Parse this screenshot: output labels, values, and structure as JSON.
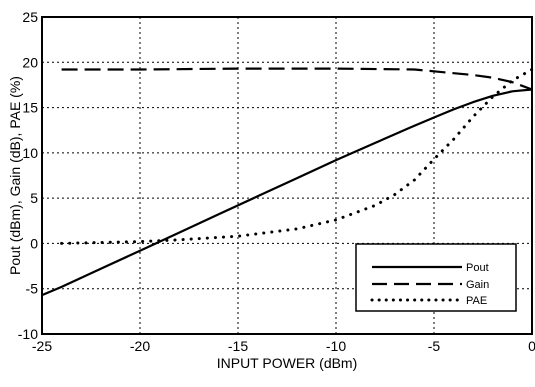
{
  "chart_data": {
    "type": "line",
    "xlabel": "INPUT POWER (dBm)",
    "ylabel": "Pout (dBm), Gain (dB), PAE (%)",
    "xlim": [
      -25,
      0
    ],
    "ylim": [
      -10,
      25
    ],
    "x_ticks": [
      -25,
      -20,
      -15,
      -10,
      -5,
      0
    ],
    "y_ticks": [
      -10,
      -5,
      0,
      5,
      10,
      15,
      20,
      25
    ],
    "x_tick_labels": [
      "-25",
      "-20",
      "-15",
      "-10",
      "-5",
      "0"
    ],
    "y_tick_labels": [
      "-10",
      "-5",
      "0",
      "5",
      "10",
      "15",
      "20",
      "25"
    ],
    "grid": true,
    "grid_style": "dotted",
    "legend_position": "bottom-right",
    "series": [
      {
        "name": "Pout",
        "style": "solid",
        "x": [
          -25,
          -24,
          -22,
          -20,
          -18,
          -16,
          -14,
          -12,
          -10,
          -8,
          -6,
          -5,
          -4,
          -3,
          -2,
          -1,
          0
        ],
        "y": [
          -5.7,
          -4.8,
          -2.8,
          -0.8,
          1.2,
          3.2,
          5.2,
          7.2,
          9.2,
          11.1,
          13.0,
          13.9,
          14.8,
          15.6,
          16.3,
          16.8,
          17.0
        ]
      },
      {
        "name": "Gain",
        "style": "dashed",
        "x": [
          -24,
          -20,
          -15,
          -10,
          -6,
          -5,
          -4,
          -3,
          -2,
          -1,
          0
        ],
        "y": [
          19.2,
          19.2,
          19.3,
          19.3,
          19.2,
          19.0,
          18.8,
          18.6,
          18.3,
          17.8,
          17.0
        ]
      },
      {
        "name": "PAE",
        "style": "dotted",
        "x": [
          -24,
          -20,
          -18,
          -15,
          -12,
          -10,
          -8,
          -7,
          -6,
          -5,
          -4,
          -3,
          -2,
          -1,
          0
        ],
        "y": [
          0.0,
          0.2,
          0.4,
          0.8,
          1.6,
          2.6,
          4.2,
          5.4,
          7.0,
          9.3,
          11.5,
          14.0,
          16.2,
          18.0,
          19.2
        ]
      }
    ]
  }
}
